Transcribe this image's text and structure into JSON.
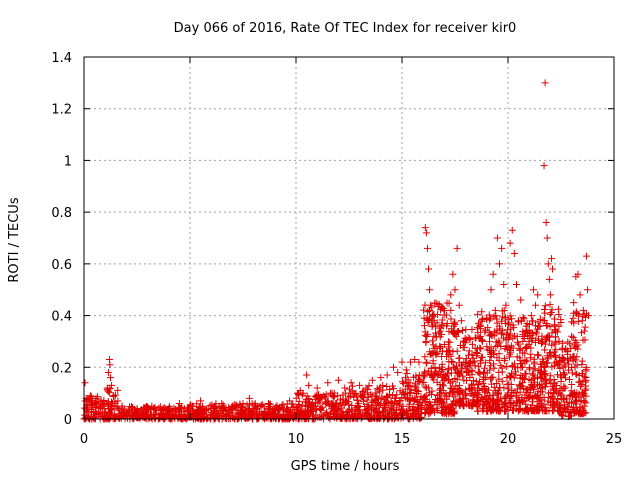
{
  "chart_data": {
    "type": "scatter",
    "title": "Day 066 of 2016, Rate Of TEC Index for receiver kir0",
    "xlabel": "GPS time / hours",
    "ylabel": "ROTI / TECUs",
    "xlim": [
      0,
      25
    ],
    "ylim": [
      0,
      1.4
    ],
    "xticks": [
      0,
      5,
      10,
      15,
      20,
      25
    ],
    "xtick_labels": [
      "0",
      "5",
      "10",
      "15",
      "20",
      "25"
    ],
    "yticks": [
      0,
      0.2,
      0.4,
      0.6,
      0.8,
      1.0,
      1.2,
      1.4
    ],
    "ytick_labels": [
      "0",
      "0.2",
      "0.4",
      "0.6",
      "0.8",
      "1",
      "1.2",
      "1.4"
    ],
    "grid": true,
    "legend": "none",
    "marker": "plus",
    "color": "#e00000",
    "series": [
      {
        "name": "ROTI",
        "points": [
          [
            0.05,
            0.14
          ],
          [
            0.1,
            0.08
          ],
          [
            0.15,
            0.05
          ],
          [
            0.3,
            0.09
          ],
          [
            0.5,
            0.06
          ],
          [
            0.7,
            0.04
          ],
          [
            1.1,
            0.12
          ],
          [
            1.15,
            0.18
          ],
          [
            1.2,
            0.23
          ],
          [
            1.22,
            0.21
          ],
          [
            1.25,
            0.16
          ],
          [
            1.3,
            0.13
          ],
          [
            1.4,
            0.09
          ],
          [
            1.6,
            0.07
          ],
          [
            1.8,
            0.05
          ],
          [
            2.5,
            0.04
          ],
          [
            3.2,
            0.05
          ],
          [
            4.0,
            0.04
          ],
          [
            4.5,
            0.06
          ],
          [
            5.0,
            0.05
          ],
          [
            5.5,
            0.07
          ],
          [
            6.0,
            0.04
          ],
          [
            6.5,
            0.06
          ],
          [
            7.0,
            0.05
          ],
          [
            7.5,
            0.06
          ],
          [
            7.8,
            0.08
          ],
          [
            8.2,
            0.05
          ],
          [
            8.7,
            0.06
          ],
          [
            9.2,
            0.04
          ],
          [
            9.7,
            0.07
          ],
          [
            10.2,
            0.11
          ],
          [
            10.5,
            0.17
          ],
          [
            10.6,
            0.13
          ],
          [
            11.0,
            0.12
          ],
          [
            11.5,
            0.14
          ],
          [
            11.8,
            0.1
          ],
          [
            12.0,
            0.15
          ],
          [
            12.3,
            0.12
          ],
          [
            12.6,
            0.14
          ],
          [
            13.0,
            0.13
          ],
          [
            13.3,
            0.12
          ],
          [
            13.6,
            0.15
          ],
          [
            14.0,
            0.16
          ],
          [
            14.3,
            0.17
          ],
          [
            14.6,
            0.2
          ],
          [
            14.8,
            0.18
          ],
          [
            15.0,
            0.22
          ],
          [
            15.2,
            0.19
          ],
          [
            15.4,
            0.22
          ],
          [
            15.6,
            0.23
          ],
          [
            15.8,
            0.22
          ],
          [
            16.1,
            0.74
          ],
          [
            16.15,
            0.72
          ],
          [
            16.2,
            0.66
          ],
          [
            16.25,
            0.58
          ],
          [
            16.3,
            0.5
          ],
          [
            16.35,
            0.44
          ],
          [
            16.4,
            0.38
          ],
          [
            16.5,
            0.32
          ],
          [
            16.6,
            0.28
          ],
          [
            16.8,
            0.34
          ],
          [
            17.0,
            0.42
          ],
          [
            17.1,
            0.36
          ],
          [
            17.3,
            0.48
          ],
          [
            17.4,
            0.56
          ],
          [
            17.5,
            0.5
          ],
          [
            17.6,
            0.66
          ],
          [
            17.7,
            0.44
          ],
          [
            17.8,
            0.38
          ],
          [
            17.9,
            0.3
          ],
          [
            18.0,
            0.22
          ],
          [
            18.2,
            0.16
          ],
          [
            18.4,
            0.12
          ],
          [
            18.6,
            0.18
          ],
          [
            18.8,
            0.3
          ],
          [
            19.0,
            0.28
          ],
          [
            19.2,
            0.5
          ],
          [
            19.3,
            0.56
          ],
          [
            19.4,
            0.42
          ],
          [
            19.5,
            0.7
          ],
          [
            19.6,
            0.6
          ],
          [
            19.7,
            0.66
          ],
          [
            19.8,
            0.52
          ],
          [
            19.9,
            0.44
          ],
          [
            20.0,
            0.28
          ],
          [
            20.1,
            0.68
          ],
          [
            20.2,
            0.73
          ],
          [
            20.3,
            0.64
          ],
          [
            20.4,
            0.52
          ],
          [
            20.5,
            0.38
          ],
          [
            20.6,
            0.46
          ],
          [
            20.7,
            0.3
          ],
          [
            20.8,
            0.22
          ],
          [
            20.9,
            0.34
          ],
          [
            21.0,
            0.3
          ],
          [
            21.1,
            0.4
          ],
          [
            21.2,
            0.5
          ],
          [
            21.3,
            0.44
          ],
          [
            21.4,
            0.48
          ],
          [
            21.5,
            0.36
          ],
          [
            21.6,
            0.32
          ],
          [
            21.7,
            0.98
          ],
          [
            21.75,
            1.3
          ],
          [
            21.8,
            0.76
          ],
          [
            21.85,
            0.7
          ],
          [
            21.9,
            0.6
          ],
          [
            21.95,
            0.54
          ],
          [
            22.0,
            0.48
          ],
          [
            22.05,
            0.62
          ],
          [
            22.1,
            0.58
          ],
          [
            22.2,
            0.36
          ],
          [
            22.4,
            0.3
          ],
          [
            22.6,
            0.2
          ],
          [
            22.8,
            0.26
          ],
          [
            23.0,
            0.32
          ],
          [
            23.1,
            0.45
          ],
          [
            23.2,
            0.55
          ],
          [
            23.3,
            0.56
          ],
          [
            23.4,
            0.48
          ],
          [
            23.5,
            0.38
          ],
          [
            23.55,
            0.42
          ],
          [
            23.6,
            0.34
          ],
          [
            23.7,
            0.63
          ],
          [
            23.75,
            0.5
          ],
          [
            23.8,
            0.4
          ]
        ],
        "bands": [
          {
            "x_start": 0.0,
            "x_end": 1.0,
            "y_low": 0.0,
            "y_high": 0.09
          },
          {
            "x_start": 1.0,
            "x_end": 1.6,
            "y_low": 0.0,
            "y_high": 0.12
          },
          {
            "x_start": 1.6,
            "x_end": 5.0,
            "y_low": 0.0,
            "y_high": 0.05
          },
          {
            "x_start": 5.0,
            "x_end": 10.0,
            "y_low": 0.0,
            "y_high": 0.06
          },
          {
            "x_start": 10.0,
            "x_end": 12.5,
            "y_low": 0.0,
            "y_high": 0.1
          },
          {
            "x_start": 12.5,
            "x_end": 15.0,
            "y_low": 0.0,
            "y_high": 0.13
          },
          {
            "x_start": 15.0,
            "x_end": 16.0,
            "y_low": 0.0,
            "y_high": 0.18
          },
          {
            "x_start": 16.0,
            "x_end": 17.5,
            "y_low": 0.02,
            "y_high": 0.45
          },
          {
            "x_start": 17.5,
            "x_end": 18.5,
            "y_low": 0.05,
            "y_high": 0.35
          },
          {
            "x_start": 18.5,
            "x_end": 20.0,
            "y_low": 0.03,
            "y_high": 0.42
          },
          {
            "x_start": 20.0,
            "x_end": 21.5,
            "y_low": 0.03,
            "y_high": 0.4
          },
          {
            "x_start": 21.5,
            "x_end": 22.5,
            "y_low": 0.03,
            "y_high": 0.45
          },
          {
            "x_start": 22.5,
            "x_end": 23.0,
            "y_low": 0.01,
            "y_high": 0.3
          },
          {
            "x_start": 23.0,
            "x_end": 23.7,
            "y_low": 0.02,
            "y_high": 0.42
          }
        ]
      }
    ]
  }
}
